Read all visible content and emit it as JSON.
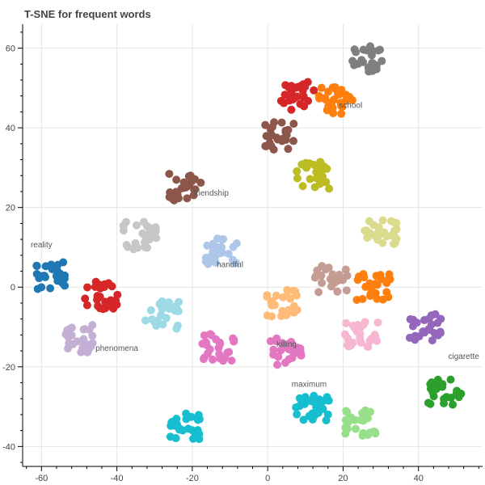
{
  "chart_data": {
    "type": "scatter",
    "title": "T-SNE for frequent words",
    "xlabel": "",
    "ylabel": "",
    "xlim": [
      -65,
      57
    ],
    "ylim": [
      -45,
      66
    ],
    "x_ticks": [
      -60,
      -40,
      -20,
      0,
      20,
      40
    ],
    "y_ticks": [
      -40,
      -20,
      0,
      20,
      40,
      60
    ],
    "grid": true,
    "legend": "none",
    "colors": [
      "#1f77b4",
      "#aec7e8",
      "#ff7f0e",
      "#ffbb78",
      "#2ca02c",
      "#98df8a",
      "#d62728",
      "#ff9896",
      "#9467bd",
      "#c5b0d5",
      "#8c564b",
      "#c49c94",
      "#e377c2",
      "#f7b6d2",
      "#7f7f7f",
      "#c7c7c7",
      "#bcbd22",
      "#dbdb8d",
      "#17becf",
      "#9edae5"
    ],
    "clusters": [
      {
        "color_index": 14,
        "x": 26,
        "y": 57
      },
      {
        "color_index": 2,
        "x": 18,
        "y": 47
      },
      {
        "color_index": 6,
        "x": 8,
        "y": 48
      },
      {
        "color_index": 10,
        "x": 3,
        "y": 38
      },
      {
        "color_index": 16,
        "x": 12,
        "y": 28
      },
      {
        "color_index": 10,
        "x": -22,
        "y": 25
      },
      {
        "color_index": 15,
        "x": -34,
        "y": 13
      },
      {
        "color_index": 1,
        "x": -12,
        "y": 9
      },
      {
        "color_index": 0,
        "x": -58,
        "y": 3
      },
      {
        "color_index": 6,
        "x": -44,
        "y": -2
      },
      {
        "color_index": 9,
        "x": -50,
        "y": -13
      },
      {
        "color_index": 19,
        "x": -28,
        "y": -7
      },
      {
        "color_index": 18,
        "x": -22,
        "y": -35
      },
      {
        "color_index": 18,
        "x": 12,
        "y": -30
      },
      {
        "color_index": 5,
        "x": 25,
        "y": -34
      },
      {
        "color_index": 4,
        "x": 47,
        "y": -26
      },
      {
        "color_index": 8,
        "x": 42,
        "y": -10
      },
      {
        "color_index": 2,
        "x": 28,
        "y": 0
      },
      {
        "color_index": 11,
        "x": 17,
        "y": 2
      },
      {
        "color_index": 12,
        "x": 5,
        "y": -16
      },
      {
        "color_index": 13,
        "x": 25,
        "y": -12
      },
      {
        "color_index": 17,
        "x": 30,
        "y": 14
      },
      {
        "color_index": 12,
        "x": -13,
        "y": -15
      },
      {
        "color_index": 3,
        "x": 4,
        "y": -4
      }
    ],
    "labels": [
      {
        "text": "cigarette",
        "x": 52,
        "y": -18
      },
      {
        "text": "killing",
        "x": 5,
        "y": -15
      },
      {
        "text": "maximum",
        "x": 11,
        "y": -25
      },
      {
        "text": "phenomena",
        "x": -40,
        "y": -16
      },
      {
        "text": "handful",
        "x": -10,
        "y": 5
      },
      {
        "text": "friendship",
        "x": -15,
        "y": 23
      },
      {
        "text": "school",
        "x": 22,
        "y": 45
      },
      {
        "text": "reality",
        "x": -60,
        "y": 10
      }
    ]
  }
}
